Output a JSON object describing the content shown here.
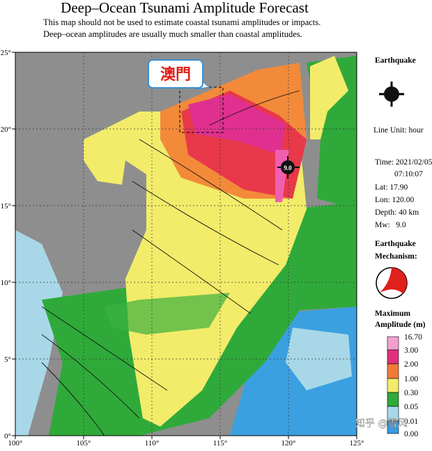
{
  "header": {
    "title": "Deep–Ocean Tsunami Amplitude Forecast",
    "notes": [
      "This map should not be used to estimate coastal tsunami amplitudes or impacts.",
      "Deep–ocean amplitudes are usually much smaller than coastal amplitudes."
    ]
  },
  "map": {
    "x_labels": [
      "100°",
      "105°",
      "110°",
      "115°",
      "120°",
      "125°"
    ],
    "y_labels": [
      "0°",
      "5°",
      "10°",
      "15°",
      "20°",
      "25°"
    ],
    "callout": "澳門",
    "epicenter_label": "9.0"
  },
  "sidebar": {
    "earthquake": "Earthquake",
    "line_unit": "Line Unit: hour",
    "time": "Time: 2021/02/05",
    "time_clock": "07:10:07",
    "lat": "Lat: 17.90",
    "lon": "Lon: 120.00",
    "depth": "Depth: 40 km",
    "mw": "Mw:   9.0",
    "mechanism": [
      "Earthquake",
      "Mechanism:"
    ],
    "amplitude_title": [
      "Maximum",
      "Amplitude (m)"
    ],
    "scale": [
      "16.70",
      "3.00",
      "2.00",
      "1.00",
      "0.30",
      "0.05",
      "0.01",
      "0.00"
    ]
  },
  "watermark": "知乎 @雪风"
}
